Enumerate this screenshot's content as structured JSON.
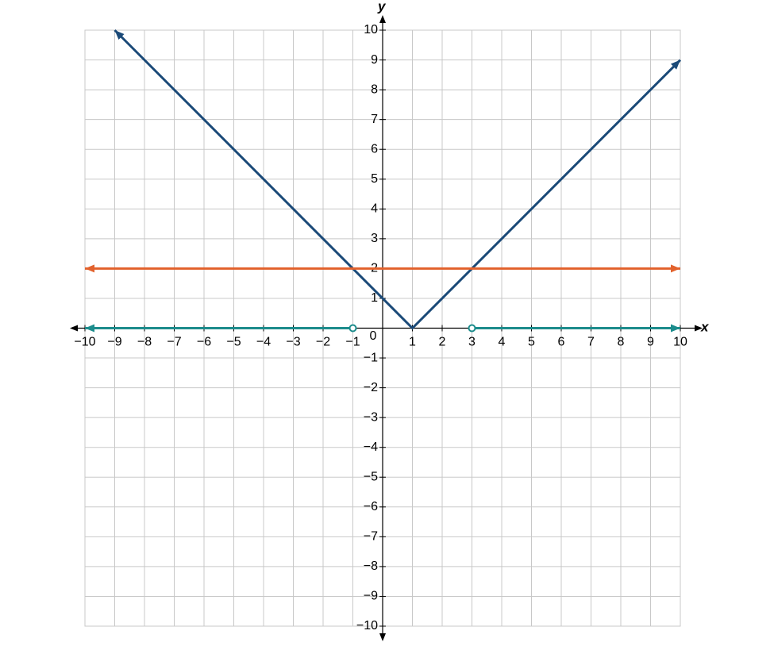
{
  "chart_data": {
    "type": "line",
    "xlabel": "x",
    "ylabel": "y",
    "origin_label": "0",
    "xlim": [
      -10,
      10
    ],
    "ylim": [
      -10,
      10
    ],
    "xticks": [
      {
        "value": -10,
        "label": "−10"
      },
      {
        "value": -9,
        "label": "−9"
      },
      {
        "value": -8,
        "label": "−8"
      },
      {
        "value": -7,
        "label": "−7"
      },
      {
        "value": -6,
        "label": "−6"
      },
      {
        "value": -5,
        "label": "−5"
      },
      {
        "value": -4,
        "label": "−4"
      },
      {
        "value": -3,
        "label": "−3"
      },
      {
        "value": -2,
        "label": "−2"
      },
      {
        "value": -1,
        "label": "−1"
      },
      1,
      2,
      3,
      4,
      5,
      6,
      7,
      8,
      9,
      10
    ],
    "yticks": [
      {
        "value": -10,
        "label": "−10"
      },
      {
        "value": -9,
        "label": "−9"
      },
      {
        "value": -8,
        "label": "−8"
      },
      {
        "value": -7,
        "label": "−7"
      },
      {
        "value": -6,
        "label": "−6"
      },
      {
        "value": -5,
        "label": "−5"
      },
      {
        "value": -4,
        "label": "−4"
      },
      {
        "value": -3,
        "label": "−3"
      },
      {
        "value": -2,
        "label": "−2"
      },
      {
        "value": -1,
        "label": "−1"
      },
      1,
      2,
      3,
      4,
      5,
      6,
      7,
      8,
      9,
      10
    ],
    "grid": true,
    "series": [
      {
        "color": "#1b4a78",
        "x": [
          -9,
          1,
          10
        ],
        "values": [
          10,
          0,
          9
        ],
        "ends": [
          "arrow",
          "arrow"
        ]
      },
      {
        "color": "#e2622d",
        "x": [
          -10,
          10
        ],
        "values": [
          2,
          2
        ],
        "ends": [
          "arrow",
          "arrow"
        ]
      },
      {
        "color": "#1c8c8c",
        "x": [
          -10,
          -1
        ],
        "values": [
          0,
          0
        ],
        "ends": [
          "arrow",
          "open"
        ]
      },
      {
        "color": "#1c8c8c",
        "x": [
          3,
          10
        ],
        "values": [
          0,
          0
        ],
        "ends": [
          "open",
          "arrow"
        ]
      }
    ]
  }
}
